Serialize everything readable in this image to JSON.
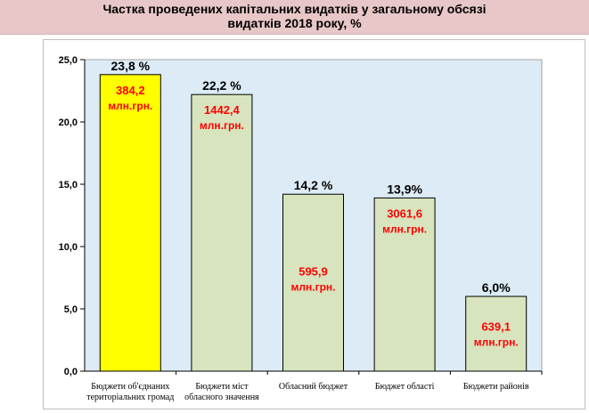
{
  "chart_data": {
    "type": "bar",
    "title_line1": "Частка проведених капітальних видатків у загальному обсязі",
    "title_line2": "видатків 2018 року, %",
    "categories": [
      [
        "Бюджети об'єднаних",
        "територіальних громад"
      ],
      [
        "Бюджети міст",
        "обласного значення"
      ],
      [
        "Обласний бюджет"
      ],
      [
        "Бюджет області"
      ],
      [
        "Бюджети районів"
      ]
    ],
    "values": [
      23.8,
      22.2,
      14.2,
      13.9,
      6.0
    ],
    "value_labels": [
      "23,8 %",
      "22,2 %",
      "14,2 %",
      "13,9%",
      "6,0%"
    ],
    "amount_labels": [
      "384,2",
      "1442,4",
      "595,9",
      "3061,6",
      "639,1"
    ],
    "amount_unit": "млн.грн.",
    "ylim": [
      0,
      25
    ],
    "yticks": [
      0,
      5,
      10,
      15,
      20,
      25
    ],
    "ytick_labels": [
      "0,0",
      "5,0",
      "10,0",
      "15,0",
      "20,0",
      "25,0"
    ],
    "grid": false,
    "colors": {
      "title_band": "#e8c7c8",
      "plot_area": "#dcebf5",
      "highlight_bar": "#ffff00",
      "bar": "#d7e4bd",
      "bar_border": "#000000",
      "amount_text": "#ff0000"
    },
    "bar_styles": [
      "highlight",
      "normal",
      "normal",
      "normal",
      "normal"
    ],
    "amount_label_placement": [
      "top",
      "top",
      "middle",
      "top",
      "middle"
    ]
  }
}
